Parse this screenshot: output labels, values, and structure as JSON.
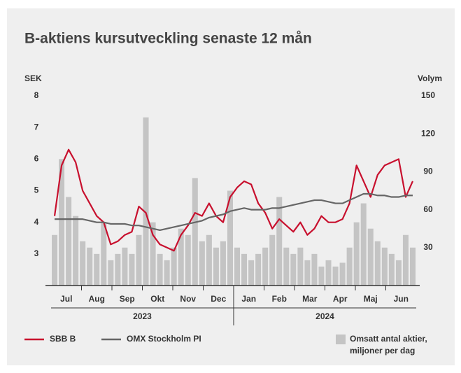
{
  "chart_data": {
    "type": "line",
    "title": "B-aktiens kursutveckling senaste 12 mån",
    "y_label": "SEK",
    "y2_label": "Volym",
    "months": [
      "Jul",
      "Aug",
      "Sep",
      "Okt",
      "Nov",
      "Dec",
      "Jan",
      "Feb",
      "Mar",
      "Apr",
      "Maj",
      "Jun"
    ],
    "years": [
      "2023",
      "2024"
    ],
    "ylim": [
      2,
      8
    ],
    "yticks": [
      3,
      4,
      5,
      6,
      7,
      8
    ],
    "y2lim": [
      0,
      150
    ],
    "y2ticks": [
      30,
      60,
      90,
      120,
      150
    ],
    "series": [
      {
        "name": "SBB B",
        "color": "#c8102e",
        "values": [
          4.2,
          5.8,
          6.3,
          5.9,
          5.0,
          4.6,
          4.2,
          4.0,
          3.3,
          3.4,
          3.6,
          3.7,
          4.5,
          4.3,
          3.6,
          3.3,
          3.2,
          3.1,
          3.6,
          3.9,
          4.3,
          4.2,
          4.6,
          4.2,
          4.0,
          4.8,
          5.1,
          5.3,
          5.2,
          4.6,
          4.3,
          3.8,
          4.1,
          3.9,
          3.7,
          4.0,
          3.6,
          3.8,
          4.2,
          4.0,
          4.0,
          4.1,
          4.6,
          5.8,
          5.3,
          4.8,
          5.5,
          5.8,
          5.9,
          6.0,
          4.8,
          5.3
        ]
      },
      {
        "name": "OMX Stockholm PI",
        "color": "#666666",
        "values": [
          4.1,
          4.1,
          4.1,
          4.1,
          4.1,
          4.05,
          4.0,
          4.0,
          3.95,
          3.95,
          3.95,
          3.9,
          3.9,
          3.85,
          3.8,
          3.75,
          3.8,
          3.85,
          3.9,
          3.95,
          4.0,
          4.05,
          4.15,
          4.2,
          4.25,
          4.35,
          4.4,
          4.45,
          4.4,
          4.4,
          4.4,
          4.45,
          4.45,
          4.5,
          4.55,
          4.6,
          4.65,
          4.7,
          4.7,
          4.65,
          4.6,
          4.6,
          4.7,
          4.8,
          4.9,
          4.9,
          4.85,
          4.85,
          4.8,
          4.8,
          4.85,
          4.85
        ]
      },
      {
        "name": "Omsatt antal aktier, miljoner per dag",
        "color": "#c4c4c4",
        "axis": "y2",
        "kind": "bar",
        "values": [
          40,
          100,
          70,
          55,
          35,
          30,
          25,
          50,
          20,
          25,
          30,
          25,
          40,
          133,
          50,
          25,
          20,
          30,
          45,
          40,
          85,
          35,
          40,
          30,
          35,
          75,
          30,
          25,
          20,
          25,
          30,
          40,
          70,
          30,
          25,
          30,
          20,
          25,
          15,
          20,
          15,
          18,
          30,
          50,
          65,
          45,
          35,
          30,
          25,
          20,
          40,
          30
        ]
      }
    ]
  }
}
